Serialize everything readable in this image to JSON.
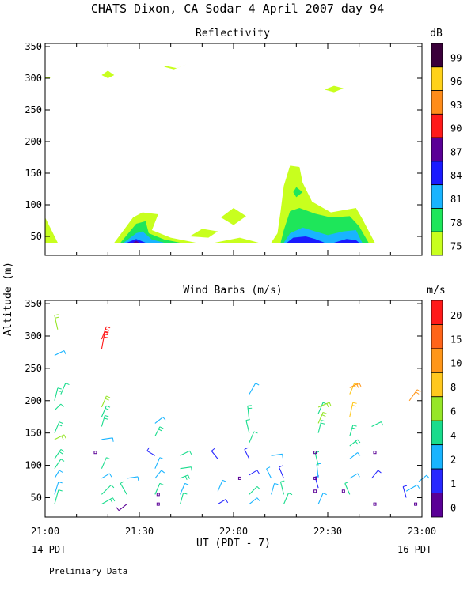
{
  "title": "CHATS Dixon, CA  Sodar   4 April 2007   day  94",
  "footer_note": "Prelimiary Data",
  "x_axis_label": "UT  (PDT - 7)",
  "left_date_label": "14 PDT",
  "right_date_label": "16 PDT",
  "y_axis_label": "Altitude (m)",
  "chart_data": [
    {
      "type": "contour",
      "title": "Reflectivity",
      "colorbar_title": "dB",
      "colorbar_labels": [
        "99",
        "96",
        "93",
        "90",
        "87",
        "84",
        "81",
        "78",
        "75"
      ],
      "colorbar_colors": [
        "#3a003a",
        "#ffd21a",
        "#ff8c1a",
        "#ff1a1a",
        "#5a0096",
        "#1a1aff",
        "#19b4ff",
        "#1ee65a",
        "#c8ff1e"
      ],
      "xlim": [
        "21:00",
        "23:00"
      ],
      "x_ticks": [
        "21:00",
        "21:30",
        "22:00",
        "22:30",
        "23:00"
      ],
      "ylim": [
        20,
        355
      ],
      "y_ticks": [
        50,
        100,
        150,
        200,
        250,
        300,
        350
      ],
      "regions": [
        {
          "level": 75,
          "points": [
            [
              0,
              40
            ],
            [
              0,
              80
            ],
            [
              1.5,
              65
            ],
            [
              4,
              40
            ]
          ]
        },
        {
          "level": 75,
          "points": [
            [
              0,
              300
            ],
            [
              2,
              301
            ],
            [
              0,
              302
            ]
          ]
        },
        {
          "level": 75,
          "points": [
            [
              18,
              305
            ],
            [
              20,
              300
            ],
            [
              22,
              305
            ],
            [
              20,
              312
            ]
          ]
        },
        {
          "level": 75,
          "points": [
            [
              38,
              320
            ],
            [
              42,
              316
            ],
            [
              45,
              322
            ],
            [
              41,
              314
            ],
            [
              38,
              318
            ]
          ]
        },
        {
          "level": 75,
          "points": [
            [
              89,
              282
            ],
            [
              92,
              278
            ],
            [
              95,
              284
            ],
            [
              92,
              288
            ]
          ]
        },
        {
          "level": 75,
          "points": [
            [
              22,
              40
            ],
            [
              28,
              80
            ],
            [
              31,
              88
            ],
            [
              36,
              85
            ],
            [
              34,
              60
            ],
            [
              40,
              48
            ],
            [
              48,
              40
            ]
          ]
        },
        {
          "level": 75,
          "points": [
            [
              46,
              50
            ],
            [
              50,
              62
            ],
            [
              55,
              58
            ],
            [
              52,
              48
            ]
          ]
        },
        {
          "level": 75,
          "points": [
            [
              56,
              80
            ],
            [
              60,
              95
            ],
            [
              64,
              82
            ],
            [
              60,
              68
            ]
          ]
        },
        {
          "level": 75,
          "points": [
            [
              54,
              40
            ],
            [
              62,
              48
            ],
            [
              68,
              40
            ]
          ]
        },
        {
          "level": 75,
          "points": [
            [
              72,
              40
            ],
            [
              74,
              55
            ],
            [
              75,
              90
            ],
            [
              76,
              130
            ],
            [
              78,
              162
            ],
            [
              81,
              160
            ],
            [
              82,
              135
            ],
            [
              85,
              105
            ],
            [
              91,
              88
            ],
            [
              99,
              95
            ],
            [
              101,
              78
            ],
            [
              105,
              40
            ]
          ]
        },
        {
          "level": 78,
          "points": [
            [
              24,
              40
            ],
            [
              29,
              70
            ],
            [
              32,
              74
            ],
            [
              33,
              55
            ],
            [
              38,
              45
            ],
            [
              43,
              40
            ]
          ]
        },
        {
          "level": 78,
          "points": [
            [
              75,
              40
            ],
            [
              76,
              60
            ],
            [
              78,
              90
            ],
            [
              81,
              95
            ],
            [
              86,
              86
            ],
            [
              91,
              80
            ],
            [
              97,
              82
            ],
            [
              100,
              66
            ],
            [
              103,
              40
            ]
          ]
        },
        {
          "level": 78,
          "points": [
            [
              79,
              120
            ],
            [
              80,
              128
            ],
            [
              82,
              120
            ],
            [
              80,
              112
            ]
          ]
        },
        {
          "level": 81,
          "points": [
            [
              25,
              40
            ],
            [
              29,
              55
            ],
            [
              31,
              58
            ],
            [
              34,
              45
            ],
            [
              38,
              40
            ]
          ]
        },
        {
          "level": 81,
          "points": [
            [
              76,
              40
            ],
            [
              78,
              55
            ],
            [
              82,
              64
            ],
            [
              86,
              58
            ],
            [
              90,
              52
            ],
            [
              95,
              58
            ],
            [
              99,
              60
            ],
            [
              101,
              40
            ]
          ]
        },
        {
          "level": 84,
          "points": [
            [
              26,
              40
            ],
            [
              29,
              46
            ],
            [
              32,
              40
            ]
          ]
        },
        {
          "level": 84,
          "points": [
            [
              77,
              40
            ],
            [
              79,
              48
            ],
            [
              83,
              50
            ],
            [
              86,
              46
            ],
            [
              89,
              40
            ]
          ]
        },
        {
          "level": 84,
          "points": [
            [
              92,
              40
            ],
            [
              96,
              46
            ],
            [
              99,
              44
            ],
            [
              100,
              40
            ]
          ]
        },
        {
          "level": 87,
          "points": [
            [
              28,
              40
            ],
            [
              29,
              43
            ],
            [
              30,
              40
            ]
          ]
        }
      ]
    },
    {
      "type": "wind_barbs",
      "title": "Wind Barbs (m/s)",
      "colorbar_title": "m/s",
      "colorbar_labels": [
        "20",
        "15",
        "10",
        "8",
        "6",
        "4",
        "2",
        "1",
        "0"
      ],
      "colorbar_colors": [
        "#ff1a1a",
        "#ff6419",
        "#ff9619",
        "#ffc81e",
        "#96e628",
        "#19dc8c",
        "#19b4ff",
        "#2828ff",
        "#5a0096"
      ],
      "xlim": [
        "21:00",
        "23:00"
      ],
      "x_ticks": [
        "21:00",
        "21:30",
        "22:00",
        "22:30",
        "23:00"
      ],
      "ylim": [
        20,
        355
      ],
      "y_ticks": [
        50,
        100,
        150,
        200,
        250,
        300,
        350
      ],
      "barbs": [
        {
          "t": 3,
          "z": 40,
          "dx": 5,
          "dy": 18,
          "level": 4
        },
        {
          "t": 3,
          "z": 55,
          "dx": 5,
          "dy": 16,
          "level": 3
        },
        {
          "t": 3,
          "z": 80,
          "dx": 6,
          "dy": 10,
          "level": 3
        },
        {
          "t": 3,
          "z": 95,
          "dx": 8,
          "dy": 12,
          "level": 4
        },
        {
          "t": 3,
          "z": 110,
          "dx": 8,
          "dy": 12,
          "level": 5
        },
        {
          "t": 3,
          "z": 140,
          "dx": 12,
          "dy": 6,
          "level": 6
        },
        {
          "t": 3,
          "z": 150,
          "dx": 6,
          "dy": 14,
          "level": 5
        },
        {
          "t": 3,
          "z": 185,
          "dx": 8,
          "dy": 8,
          "level": 4
        },
        {
          "t": 3,
          "z": 200,
          "dx": 4,
          "dy": 16,
          "level": 5
        },
        {
          "t": 3,
          "z": 270,
          "dx": 12,
          "dy": 6,
          "level": 3
        },
        {
          "t": 4,
          "z": 310,
          "dx": -4,
          "dy": 18,
          "level": 6
        },
        {
          "t": 5,
          "z": 210,
          "dx": 6,
          "dy": 14,
          "level": 4
        },
        {
          "t": 18,
          "z": 40,
          "dx": 14,
          "dy": 8,
          "level": 5
        },
        {
          "t": 18,
          "z": 55,
          "dx": 12,
          "dy": 12,
          "level": 4
        },
        {
          "t": 18,
          "z": 80,
          "dx": 10,
          "dy": 6,
          "level": 3
        },
        {
          "t": 18,
          "z": 95,
          "dx": 6,
          "dy": 14,
          "level": 4
        },
        {
          "t": 18,
          "z": 140,
          "dx": 14,
          "dy": 2,
          "level": 3
        },
        {
          "t": 18,
          "z": 160,
          "dx": 4,
          "dy": 14,
          "level": 5
        },
        {
          "t": 18,
          "z": 175,
          "dx": 6,
          "dy": 14,
          "level": 5
        },
        {
          "t": 18,
          "z": 190,
          "dx": 6,
          "dy": 14,
          "level": 6
        },
        {
          "t": 18,
          "z": 280,
          "dx": 4,
          "dy": 22,
          "level": 20
        },
        {
          "t": 18,
          "z": 295,
          "dx": 6,
          "dy": 16,
          "level": 20
        },
        {
          "t": 26,
          "z": 40,
          "dx": -10,
          "dy": -8,
          "level": 0
        },
        {
          "t": 26,
          "z": 55,
          "dx": -8,
          "dy": 14,
          "level": 4
        },
        {
          "t": 26,
          "z": 80,
          "dx": 14,
          "dy": 2,
          "level": 2
        },
        {
          "t": 35,
          "z": 55,
          "dx": 6,
          "dy": 14,
          "level": 4
        },
        {
          "t": 35,
          "z": 80,
          "dx": 8,
          "dy": 10,
          "level": 3
        },
        {
          "t": 35,
          "z": 95,
          "dx": 6,
          "dy": 14,
          "level": 3
        },
        {
          "t": 35,
          "z": 115,
          "dx": -10,
          "dy": 6,
          "level": 1
        },
        {
          "t": 35,
          "z": 145,
          "dx": 6,
          "dy": 12,
          "level": 5
        },
        {
          "t": 35,
          "z": 165,
          "dx": 10,
          "dy": 8,
          "level": 3
        },
        {
          "t": 43,
          "z": 40,
          "dx": 4,
          "dy": 14,
          "level": 4
        },
        {
          "t": 43,
          "z": 55,
          "dx": 6,
          "dy": 14,
          "level": 3
        },
        {
          "t": 43,
          "z": 80,
          "dx": 10,
          "dy": 4,
          "level": 5
        },
        {
          "t": 43,
          "z": 95,
          "dx": 14,
          "dy": 2,
          "level": 4
        },
        {
          "t": 43,
          "z": 115,
          "dx": 12,
          "dy": 6,
          "level": 4
        },
        {
          "t": 55,
          "z": 40,
          "dx": 10,
          "dy": 6,
          "level": 1
        },
        {
          "t": 55,
          "z": 60,
          "dx": 6,
          "dy": 14,
          "level": 3
        },
        {
          "t": 55,
          "z": 110,
          "dx": -8,
          "dy": 10,
          "level": 1
        },
        {
          "t": 65,
          "z": 40,
          "dx": 10,
          "dy": 8,
          "level": 3
        },
        {
          "t": 65,
          "z": 55,
          "dx": 10,
          "dy": 10,
          "level": 4
        },
        {
          "t": 65,
          "z": 85,
          "dx": 10,
          "dy": 6,
          "level": 1
        },
        {
          "t": 65,
          "z": 110,
          "dx": -6,
          "dy": 12,
          "level": 1
        },
        {
          "t": 65,
          "z": 135,
          "dx": 6,
          "dy": 14,
          "level": 4
        },
        {
          "t": 65,
          "z": 150,
          "dx": -4,
          "dy": 16,
          "level": 4
        },
        {
          "t": 65,
          "z": 170,
          "dx": -2,
          "dy": 18,
          "level": 5
        },
        {
          "t": 65,
          "z": 210,
          "dx": 8,
          "dy": 14,
          "level": 3
        },
        {
          "t": 72,
          "z": 55,
          "dx": 4,
          "dy": 14,
          "level": 3
        },
        {
          "t": 72,
          "z": 80,
          "dx": -6,
          "dy": 12,
          "level": 2
        },
        {
          "t": 72,
          "z": 115,
          "dx": 14,
          "dy": 2,
          "level": 3
        },
        {
          "t": 76,
          "z": 40,
          "dx": 6,
          "dy": 14,
          "level": 4
        },
        {
          "t": 76,
          "z": 55,
          "dx": -4,
          "dy": 16,
          "level": 4
        },
        {
          "t": 76,
          "z": 80,
          "dx": -6,
          "dy": 14,
          "level": 1
        },
        {
          "t": 87,
          "z": 40,
          "dx": 6,
          "dy": 14,
          "level": 3
        },
        {
          "t": 87,
          "z": 65,
          "dx": -4,
          "dy": 14,
          "level": 1
        },
        {
          "t": 87,
          "z": 80,
          "dx": -2,
          "dy": 18,
          "level": 3
        },
        {
          "t": 87,
          "z": 100,
          "dx": -4,
          "dy": 16,
          "level": 4
        },
        {
          "t": 87,
          "z": 150,
          "dx": 4,
          "dy": 16,
          "level": 5
        },
        {
          "t": 87,
          "z": 165,
          "dx": 6,
          "dy": 14,
          "level": 6
        },
        {
          "t": 87,
          "z": 180,
          "dx": 6,
          "dy": 14,
          "level": 4
        },
        {
          "t": 87,
          "z": 190,
          "dx": 14,
          "dy": 6,
          "level": 6
        },
        {
          "t": 97,
          "z": 55,
          "dx": -6,
          "dy": 14,
          "level": 4
        },
        {
          "t": 97,
          "z": 80,
          "dx": 10,
          "dy": 6,
          "level": 3
        },
        {
          "t": 97,
          "z": 110,
          "dx": 10,
          "dy": 8,
          "level": 3
        },
        {
          "t": 97,
          "z": 130,
          "dx": 10,
          "dy": 8,
          "level": 5
        },
        {
          "t": 97,
          "z": 145,
          "dx": 4,
          "dy": 14,
          "level": 5
        },
        {
          "t": 97,
          "z": 175,
          "dx": 4,
          "dy": 18,
          "level": 8
        },
        {
          "t": 97,
          "z": 210,
          "dx": 6,
          "dy": 14,
          "level": 8
        },
        {
          "t": 97,
          "z": 220,
          "dx": 12,
          "dy": 6,
          "level": 10
        },
        {
          "t": 104,
          "z": 80,
          "dx": 8,
          "dy": 10,
          "level": 1
        },
        {
          "t": 104,
          "z": 160,
          "dx": 12,
          "dy": 6,
          "level": 4
        },
        {
          "t": 115,
          "z": 50,
          "dx": -4,
          "dy": 14,
          "level": 1
        },
        {
          "t": 115,
          "z": 60,
          "dx": 14,
          "dy": 8,
          "level": 3
        },
        {
          "t": 116,
          "z": 200,
          "dx": 10,
          "dy": 14,
          "level": 10
        },
        {
          "t": 119,
          "z": 75,
          "dx": 10,
          "dy": 8,
          "level": 3
        }
      ],
      "calm_markers": [
        {
          "t": 16,
          "z": 120,
          "level": 0
        },
        {
          "t": 36,
          "z": 40,
          "level": 0
        },
        {
          "t": 36,
          "z": 55,
          "level": 0
        },
        {
          "t": 62,
          "z": 80,
          "level": 0
        },
        {
          "t": 86,
          "z": 60,
          "level": 0
        },
        {
          "t": 86,
          "z": 80,
          "level": 0
        },
        {
          "t": 86,
          "z": 120,
          "level": 0
        },
        {
          "t": 95,
          "z": 60,
          "level": 0
        },
        {
          "t": 105,
          "z": 40,
          "level": 0
        },
        {
          "t": 105,
          "z": 120,
          "level": 0
        },
        {
          "t": 118,
          "z": 40,
          "level": 0
        }
      ]
    }
  ]
}
